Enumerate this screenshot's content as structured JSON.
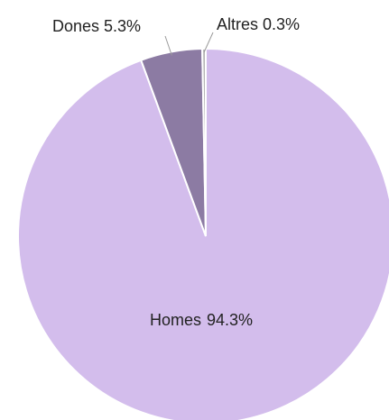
{
  "chart_data": {
    "type": "pie",
    "categories": [
      "Homes",
      "Dones",
      "Altres"
    ],
    "values": [
      94.3,
      5.3,
      0.3
    ],
    "value_labels": [
      "94.3%",
      "5.3%",
      "0.3%"
    ],
    "colors": [
      "#d3bdec",
      "#8c7ba3",
      "#b5b5b5"
    ]
  }
}
